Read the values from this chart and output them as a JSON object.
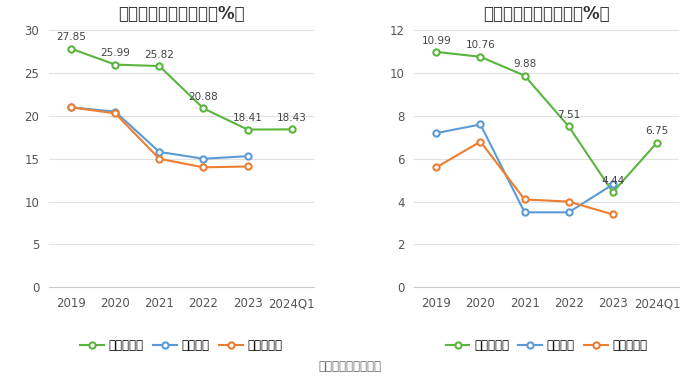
{
  "left_title": "历年毛利率变化情况（%）",
  "right_title": "历年净利率变化情况（%）",
  "footer": "数据来源：恒生聚源",
  "x_labels": [
    "2019",
    "2020",
    "2021",
    "2022",
    "2023",
    "2024Q1"
  ],
  "gross_margin": {
    "company": [
      27.85,
      25.99,
      25.82,
      20.88,
      18.41,
      18.43
    ],
    "industry_avg": [
      21.0,
      20.5,
      15.8,
      15.0,
      15.3,
      null
    ],
    "industry_median": [
      21.0,
      20.3,
      15.0,
      14.0,
      14.1,
      null
    ]
  },
  "net_margin": {
    "company": [
      10.99,
      10.76,
      9.88,
      7.51,
      4.44,
      6.75
    ],
    "industry_avg": [
      7.2,
      7.6,
      3.5,
      3.5,
      4.8,
      null
    ],
    "industry_median": [
      5.6,
      6.8,
      4.1,
      4.0,
      3.4,
      null
    ]
  },
  "left_ylim": [
    0,
    30
  ],
  "left_yticks": [
    0,
    5,
    10,
    15,
    20,
    25,
    30
  ],
  "right_ylim": [
    0,
    12
  ],
  "right_yticks": [
    0,
    2,
    4,
    6,
    8,
    10,
    12
  ],
  "color_company": "#5ab53f",
  "color_industry_avg": "#5b9bd5",
  "color_industry_median": "#ed7d31",
  "legend_labels": [
    "公司毛利率",
    "行业均值",
    "行业中位数"
  ],
  "legend_labels_right": [
    "公司净利率",
    "行业均值",
    "行业中位数"
  ],
  "bg_color": "#ffffff",
  "grid_color": "#e0e0e0",
  "title_fontsize": 12,
  "label_fontsize": 8.5,
  "legend_fontsize": 8.5,
  "footer_fontsize": 8.5,
  "annot_fontsize": 7.5
}
